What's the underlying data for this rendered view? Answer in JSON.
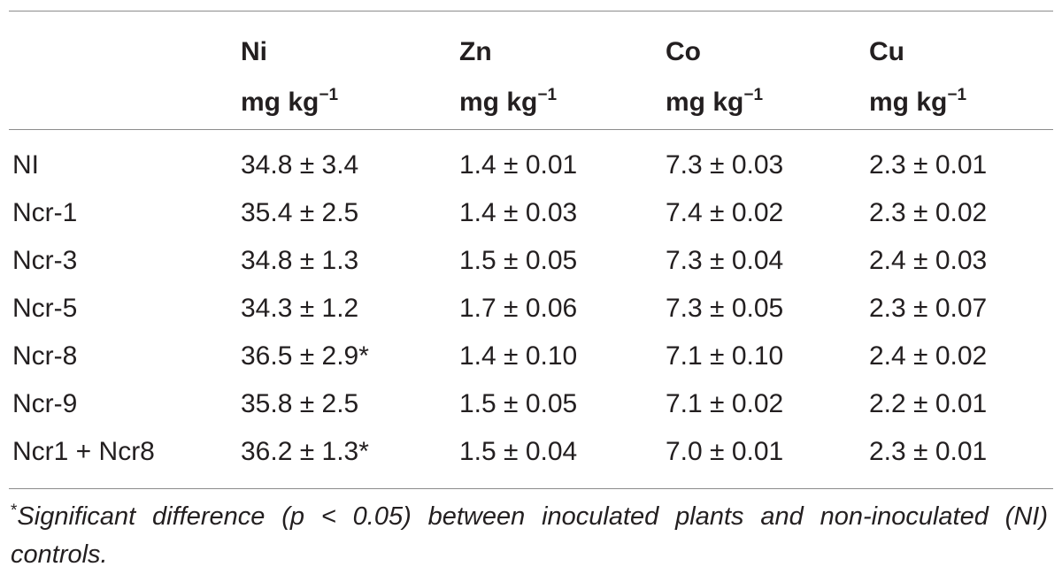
{
  "table": {
    "headers": [
      {
        "element": "Ni",
        "unit_base": "mg kg",
        "unit_exp": "−1"
      },
      {
        "element": "Zn",
        "unit_base": "mg kg",
        "unit_exp": "−1"
      },
      {
        "element": "Co",
        "unit_base": "mg kg",
        "unit_exp": "−1"
      },
      {
        "element": "Cu",
        "unit_base": "mg kg",
        "unit_exp": "−1"
      }
    ],
    "rows": [
      {
        "label": "NI",
        "values": [
          "34.8 ± 3.4",
          "1.4 ± 0.01",
          "7.3 ± 0.03",
          "2.3 ± 0.01"
        ]
      },
      {
        "label": "Ncr-1",
        "values": [
          "35.4 ± 2.5",
          "1.4 ± 0.03",
          "7.4 ± 0.02",
          "2.3 ± 0.02"
        ]
      },
      {
        "label": "Ncr-3",
        "values": [
          "34.8 ± 1.3",
          "1.5 ± 0.05",
          "7.3 ± 0.04",
          "2.4 ± 0.03"
        ]
      },
      {
        "label": "Ncr-5",
        "values": [
          "34.3 ± 1.2",
          "1.7 ± 0.06",
          "7.3 ± 0.05",
          "2.3 ± 0.07"
        ]
      },
      {
        "label": "Ncr-8",
        "values": [
          "36.5 ± 2.9*",
          "1.4 ± 0.10",
          "7.1 ± 0.10",
          "2.4 ± 0.02"
        ]
      },
      {
        "label": "Ncr-9",
        "values": [
          "35.8 ± 2.5",
          "1.5 ± 0.05",
          "7.1 ± 0.02",
          "2.2 ± 0.01"
        ]
      },
      {
        "label": "Ncr1 + Ncr8",
        "values": [
          "36.2 ± 1.3*",
          "1.5 ± 0.04",
          "7.0 ± 0.01",
          "2.3 ± 0.01"
        ]
      }
    ]
  },
  "footnote": {
    "mark": "*",
    "text": "Significant difference (p < 0.05) between inoculated plants and non-inoculated (NI) controls."
  }
}
